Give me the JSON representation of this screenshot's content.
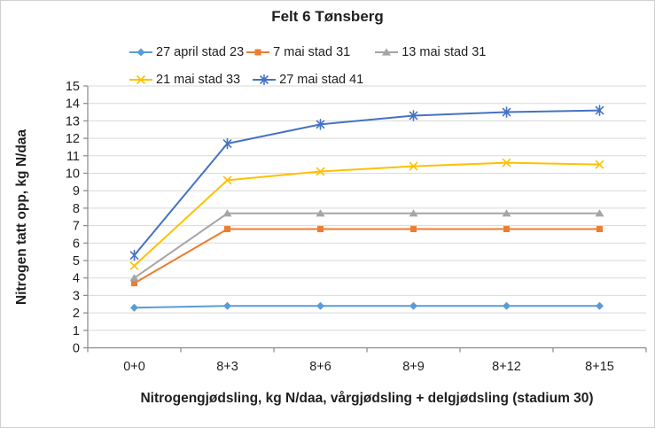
{
  "chart_data": {
    "type": "line",
    "title": "Felt 6 Tønsberg",
    "xlabel": "Nitrogengjødsling, kg N/daa, vårgjødsling + delgjødsling (stadium 30)",
    "ylabel": "Nitrogen tatt opp, kg N/daa",
    "categories": [
      "0+0",
      "8+3",
      "8+6",
      "8+9",
      "8+12",
      "8+15"
    ],
    "ylim": [
      0,
      15
    ],
    "ytick_step": 1,
    "grid": "horizontal-gridlines-on",
    "legend_position": "top",
    "series": [
      {
        "name": "27 april stad 23",
        "marker": "diamond",
        "color": "#5B9BD5",
        "values": [
          2.3,
          2.4,
          2.4,
          2.4,
          2.4,
          2.4
        ]
      },
      {
        "name": "7 mai stad 31",
        "marker": "square",
        "color": "#ED7D31",
        "values": [
          3.7,
          6.8,
          6.8,
          6.8,
          6.8,
          6.8
        ]
      },
      {
        "name": "13 mai stad 31",
        "marker": "triangle",
        "color": "#A5A5A5",
        "values": [
          4.0,
          7.7,
          7.7,
          7.7,
          7.7,
          7.7
        ]
      },
      {
        "name": "21 mai stad 33",
        "marker": "x",
        "color": "#FFC000",
        "values": [
          4.7,
          9.6,
          10.1,
          10.4,
          10.6,
          10.5
        ]
      },
      {
        "name": "27 mai stad 41",
        "marker": "star",
        "color": "#4472C4",
        "values": [
          5.3,
          11.7,
          12.8,
          13.3,
          13.5,
          13.6
        ]
      }
    ],
    "colors": {
      "axis": "#898989",
      "gridline": "#D9D9D9",
      "text": "#1F1F1F",
      "background": "#FFFFFF"
    }
  }
}
